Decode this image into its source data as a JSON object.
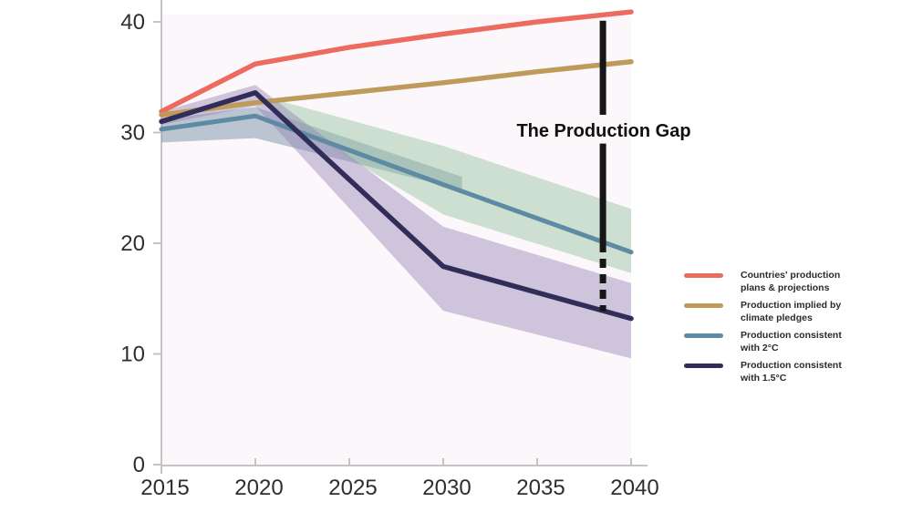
{
  "annotation": {
    "label": "The Production Gap"
  },
  "axes": {
    "y_ticks": [
      "0",
      "10",
      "20",
      "30",
      "40"
    ],
    "x_ticks": [
      "2015",
      "2020",
      "2025",
      "2030",
      "2035",
      "2040"
    ]
  },
  "legend": {
    "items": [
      {
        "color": "#ed6a5e",
        "line1": "Countries' production",
        "line2": "plans & projections"
      },
      {
        "color": "#bf9a5a",
        "line1": "Production implied by",
        "line2": "climate pledges"
      },
      {
        "color": "#5f8aa3",
        "line1": "Production consistent",
        "line2": "with 2°C"
      },
      {
        "color": "#312d59",
        "line1": "Production consistent",
        "line2": "with 1.5°C"
      }
    ]
  },
  "colors": {
    "axis": "#c4c4c4",
    "gap_line": "#161616",
    "plot_tint": "#f7eef3"
  },
  "chart_data": {
    "type": "line",
    "title": "The Production Gap",
    "xlabel": "",
    "ylabel": "",
    "xlim": [
      2015,
      2040
    ],
    "ylim": [
      0,
      42
    ],
    "grid": false,
    "legend_position": "right",
    "x_ticks": [
      2015,
      2020,
      2025,
      2030,
      2035,
      2040
    ],
    "y_ticks": [
      0,
      10,
      20,
      30,
      40
    ],
    "series": [
      {
        "name": "Countries' production plans & projections",
        "color": "#ed6a5e",
        "width": 5.5,
        "x": [
          2015,
          2020,
          2025,
          2030,
          2035,
          2040
        ],
        "values": [
          31.9,
          36.2,
          37.7,
          38.9,
          40.0,
          40.9
        ]
      },
      {
        "name": "Production implied by climate pledges",
        "color": "#bf9a5a",
        "width": 5.5,
        "x": [
          2015,
          2020,
          2025,
          2030,
          2035,
          2040
        ],
        "values": [
          31.6,
          32.7,
          33.6,
          34.5,
          35.5,
          36.4
        ]
      },
      {
        "name": "Production consistent with 2°C",
        "color": "#5f8aa3",
        "width": 5,
        "x": [
          2015,
          2020,
          2030,
          2040
        ],
        "values": [
          30.3,
          31.5,
          25.3,
          19.2
        ]
      },
      {
        "name": "Production consistent with 1.5°C",
        "color": "#312d59",
        "width": 5.5,
        "x": [
          2015,
          2020,
          2030,
          2040
        ],
        "values": [
          31.0,
          33.6,
          17.9,
          13.2
        ]
      }
    ],
    "bands": [
      {
        "name": "2C-pathway-range-near-term",
        "color": "rgba(121,148,167,0.5)",
        "points": [
          [
            2015,
            31.2
          ],
          [
            2020,
            32.3
          ],
          [
            2031,
            26.0
          ],
          [
            2031,
            24.8
          ],
          [
            2020,
            29.5
          ],
          [
            2015,
            29.1
          ]
        ]
      },
      {
        "name": "2C-pathway-range",
        "color": "rgba(146,193,157,0.45)",
        "points": [
          [
            2020.8,
            33.1
          ],
          [
            2030,
            28.8
          ],
          [
            2040,
            23.1
          ],
          [
            2040,
            17.3
          ],
          [
            2030,
            22.6
          ],
          [
            2020.8,
            31.9
          ]
        ]
      },
      {
        "name": "1.5C-pathway-range",
        "color": "rgba(151,133,185,0.45)",
        "points": [
          [
            2015,
            31.9
          ],
          [
            2020,
            34.3
          ],
          [
            2030,
            21.5
          ],
          [
            2040,
            16.4
          ],
          [
            2040,
            9.6
          ],
          [
            2030,
            13.9
          ],
          [
            2020,
            32.4
          ],
          [
            2015,
            30.7
          ]
        ]
      }
    ],
    "gap_line": {
      "x": 2038.5,
      "solid_top": [
        40.1,
        31.6
      ],
      "solid_mid": [
        29.0,
        20.0
      ],
      "dashed": [
        20.0,
        13.85
      ]
    }
  }
}
